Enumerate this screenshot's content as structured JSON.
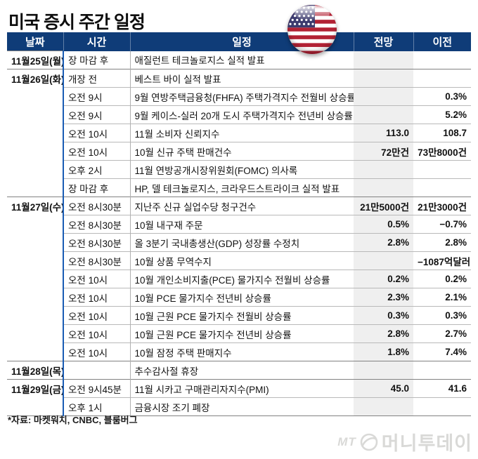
{
  "title": "미국 증시 주간 일정",
  "source": "*자료: 마켓워치, CNBC, 블룸버그",
  "logo": {
    "mt": "MT",
    "name": "머니투데이"
  },
  "colors": {
    "header_bg": "#0f3c78",
    "date_text": "#1a5cb4",
    "forecast_col_bg": "#efefef",
    "group_divider": "#828282",
    "row_divider": "#b9b9b9",
    "flag_red": "#b22234",
    "flag_blue": "#3c3b6e"
  },
  "table": {
    "columns": [
      {
        "key": "date",
        "label": "날짜"
      },
      {
        "key": "time",
        "label": "시간"
      },
      {
        "key": "event",
        "label": "일정"
      },
      {
        "key": "forecast",
        "label": "전망"
      },
      {
        "key": "previous",
        "label": "이전"
      }
    ],
    "rows": [
      {
        "date": "11월25일(월)",
        "time": "장 마감 후",
        "event": "애질런트 테크놀로지스 실적 발표",
        "forecast": "",
        "previous": "",
        "group": true
      },
      {
        "date": "11월26일(화)",
        "time": "개장 전",
        "event": "베스트 바이 실적 발표",
        "forecast": "",
        "previous": "",
        "group": true
      },
      {
        "date": "",
        "time": "오전 9시",
        "event": "9월 연방주택금융청(FHFA) 주택가격지수 전월비 상승률",
        "forecast": "",
        "previous": "0.3%",
        "group": false
      },
      {
        "date": "",
        "time": "오전 9시",
        "event": "9월 케이스-실러 20개 도시 주택가격지수 전년비 상승률",
        "forecast": "",
        "previous": "5.2%",
        "group": false
      },
      {
        "date": "",
        "time": "오전 10시",
        "event": "11월 소비자 신뢰지수",
        "forecast": "113.0",
        "previous": "108.7",
        "group": false
      },
      {
        "date": "",
        "time": "오전 10시",
        "event": "10월 신규 주택 판매건수",
        "forecast": "72만건",
        "previous": "73만8000건",
        "group": false
      },
      {
        "date": "",
        "time": "오후 2시",
        "event": "11월 연방공개시장위원회(FOMC) 의사록",
        "forecast": "",
        "previous": "",
        "group": false
      },
      {
        "date": "",
        "time": "장 마감 후",
        "event": "HP, 델 테크놀로지스, 크라우드스트라이크 실적 발표",
        "forecast": "",
        "previous": "",
        "group": false
      },
      {
        "date": "11월27일(수)",
        "time": "오전 8시30분",
        "event": "지난주 신규 실업수당 청구건수",
        "forecast": "21만5000건",
        "previous": "21만3000건",
        "group": true
      },
      {
        "date": "",
        "time": "오전 8시30분",
        "event": "10월 내구재 주문",
        "forecast": "0.5%",
        "previous": "−0.7%",
        "group": false
      },
      {
        "date": "",
        "time": "오전 8시30분",
        "event": "올 3분기 국내총생산(GDP) 성장률 수정치",
        "forecast": "2.8%",
        "previous": "2.8%",
        "group": false
      },
      {
        "date": "",
        "time": "오전 8시30분",
        "event": "10월 상품 무역수지",
        "forecast": "",
        "previous": "−1087억달러",
        "group": false
      },
      {
        "date": "",
        "time": "오전 10시",
        "event": "10월 개인소비지출(PCE) 물가지수 전월비 상승률",
        "forecast": "0.2%",
        "previous": "0.2%",
        "group": false
      },
      {
        "date": "",
        "time": "오전 10시",
        "event": "10월 PCE 물가지수 전년비 상승률",
        "forecast": "2.3%",
        "previous": "2.1%",
        "group": false
      },
      {
        "date": "",
        "time": "오전 10시",
        "event": "10월 근원 PCE 물가지수 전월비 상승률",
        "forecast": "0.3%",
        "previous": "0.3%",
        "group": false
      },
      {
        "date": "",
        "time": "오전 10시",
        "event": "10월 근원 PCE 물가지수 전년비 상승률",
        "forecast": "2.8%",
        "previous": "2.7%",
        "group": false
      },
      {
        "date": "",
        "time": "오전 10시",
        "event": "10월 잠정 주택 판매지수",
        "forecast": "1.8%",
        "previous": "7.4%",
        "group": false
      },
      {
        "date": "11월28일(목)",
        "time": "",
        "event": "추수감사절 휴장",
        "forecast": "",
        "previous": "",
        "group": true
      },
      {
        "date": "11월29일(금)",
        "time": "오전 9시45분",
        "event": "11월 시카고 구매관리자지수(PMI)",
        "forecast": "45.0",
        "previous": "41.6",
        "group": true
      },
      {
        "date": "",
        "time": "오후 1시",
        "event": "금융시장 조기 폐장",
        "forecast": "",
        "previous": "",
        "group": false
      }
    ]
  }
}
